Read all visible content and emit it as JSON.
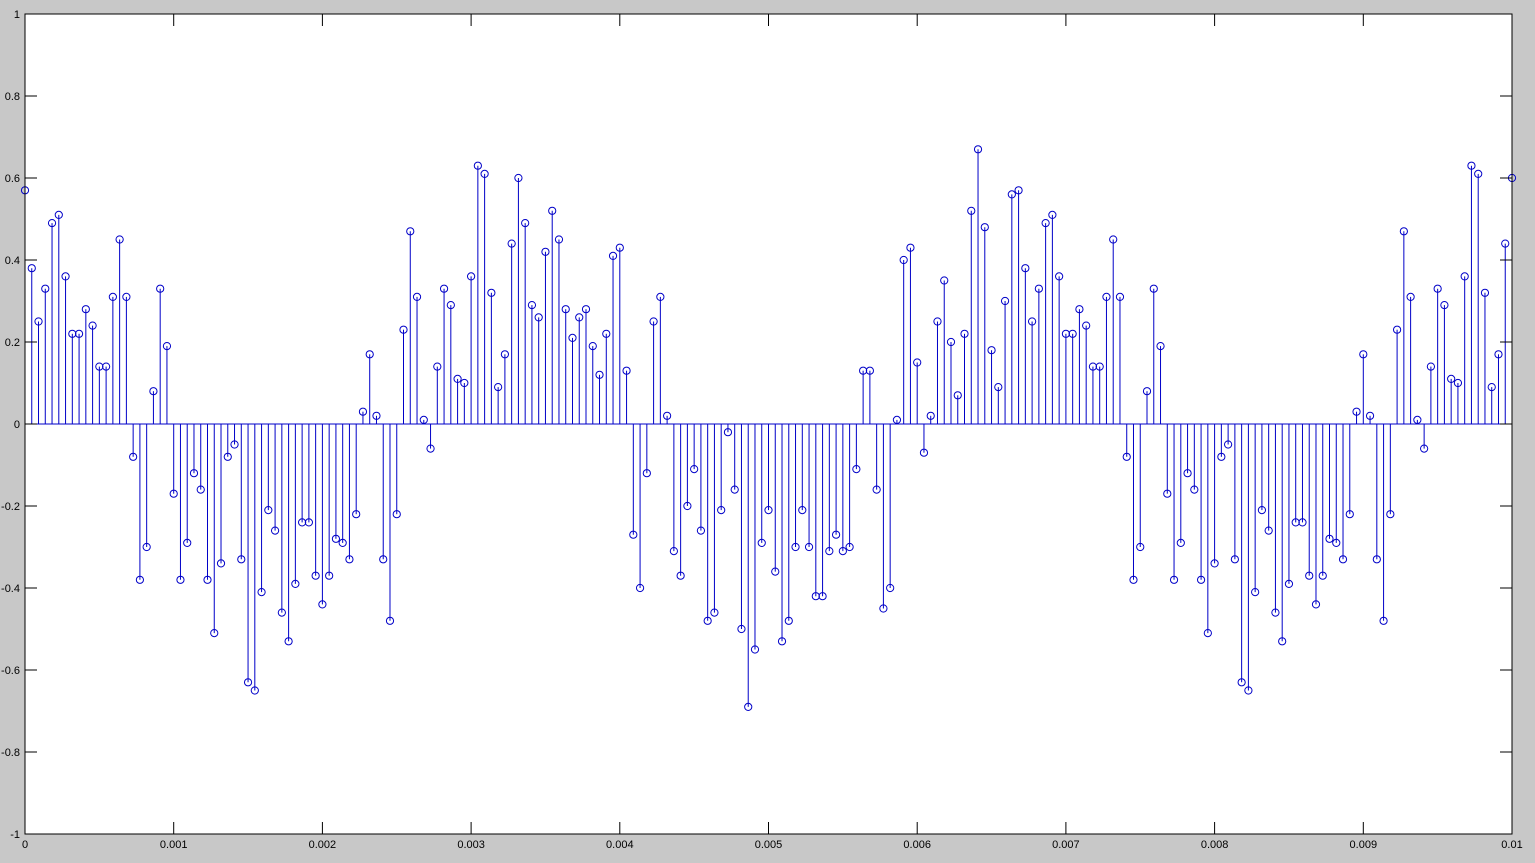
{
  "chart_data": {
    "type": "stem",
    "title": "",
    "xlabel": "",
    "ylabel": "",
    "xlim": [
      0,
      0.01
    ],
    "ylim": [
      -1,
      1
    ],
    "grid": false,
    "legend": "none",
    "x_ticks": [
      {
        "value": 0,
        "label": "0"
      },
      {
        "value": 0.001,
        "label": "0.001"
      },
      {
        "value": 0.002,
        "label": "0.002"
      },
      {
        "value": 0.003,
        "label": "0.003"
      },
      {
        "value": 0.004,
        "label": "0.004"
      },
      {
        "value": 0.005,
        "label": "0.005"
      },
      {
        "value": 0.006,
        "label": "0.006"
      },
      {
        "value": 0.007,
        "label": "0.007"
      },
      {
        "value": 0.008,
        "label": "0.008"
      },
      {
        "value": 0.009,
        "label": "0.009"
      },
      {
        "value": 0.01,
        "label": "0.01"
      }
    ],
    "y_ticks": [
      {
        "value": -1,
        "label": "-1"
      },
      {
        "value": -0.8,
        "label": "-0.8"
      },
      {
        "value": -0.6,
        "label": "-0.6"
      },
      {
        "value": -0.4,
        "label": "-0.4"
      },
      {
        "value": -0.2,
        "label": "-0.2"
      },
      {
        "value": 0,
        "label": "0"
      },
      {
        "value": 0.2,
        "label": "0.2"
      },
      {
        "value": 0.4,
        "label": "0.4"
      },
      {
        "value": 0.6,
        "label": "0.6"
      },
      {
        "value": 0.8,
        "label": "0.8"
      },
      {
        "value": 1,
        "label": "1"
      }
    ],
    "x_start": 0,
    "x_step": 4.54545e-05,
    "colors": {
      "stem": "#0000c8",
      "axes": "#000000",
      "plot_background": "#ffffff",
      "figure_background": "#c8c8c8"
    },
    "series": [
      {
        "values": [
          0.57,
          0.38,
          0.25,
          0.33,
          0.49,
          0.51,
          0.36,
          0.22,
          0.22,
          0.28,
          0.24,
          0.14,
          0.14,
          0.31,
          0.45,
          0.31,
          -0.08,
          -0.38,
          -0.3,
          0.08,
          0.33,
          0.19,
          -0.17,
          -0.38,
          -0.29,
          -0.12,
          -0.16,
          -0.38,
          -0.51,
          -0.34,
          -0.08,
          -0.05,
          -0.33,
          -0.63,
          -0.65,
          -0.41,
          -0.21,
          -0.26,
          -0.46,
          -0.53,
          -0.39,
          -0.24,
          -0.24,
          -0.37,
          -0.44,
          -0.37,
          -0.28,
          -0.29,
          -0.33,
          -0.22,
          0.03,
          0.17,
          0.02,
          -0.33,
          -0.48,
          -0.22,
          0.23,
          0.47,
          0.31,
          0.01,
          -0.06,
          0.14,
          0.33,
          0.29,
          0.11,
          0.1,
          0.36,
          0.63,
          0.61,
          0.32,
          0.09,
          0.17,
          0.44,
          0.6,
          0.49,
          0.29,
          0.26,
          0.42,
          0.52,
          0.45,
          0.28,
          0.21,
          0.26,
          0.28,
          0.19,
          0.12,
          0.22,
          0.41,
          0.43,
          0.13,
          -0.27,
          -0.4,
          -0.12,
          0.25,
          0.31,
          0.02,
          -0.31,
          -0.37,
          -0.2,
          -0.11,
          -0.26,
          -0.48,
          -0.46,
          -0.21,
          -0.02,
          -0.16,
          -0.5,
          -0.69,
          -0.55,
          -0.29,
          -0.21,
          -0.36,
          -0.53,
          -0.48,
          -0.3,
          -0.21,
          -0.3,
          -0.42,
          -0.42,
          -0.31,
          -0.27,
          -0.31,
          -0.3,
          -0.11,
          0.13,
          0.13,
          -0.16,
          -0.45,
          -0.4,
          0.01,
          0.4,
          0.43,
          0.15,
          -0.07,
          0.02,
          0.25,
          0.35,
          0.2,
          0.07,
          0.22,
          0.52,
          0.67,
          0.48,
          0.18,
          0.09,
          0.3,
          0.56,
          0.57,
          0.38,
          0.25,
          0.33,
          0.49,
          0.51,
          0.36,
          0.22,
          0.22,
          0.28,
          0.24,
          0.14,
          0.14,
          0.31,
          0.45,
          0.31,
          -0.08,
          -0.38,
          -0.3,
          0.08,
          0.33,
          0.19,
          -0.17,
          -0.38,
          -0.29,
          -0.12,
          -0.16,
          -0.38,
          -0.51,
          -0.34,
          -0.08,
          -0.05,
          -0.33,
          -0.63,
          -0.65,
          -0.41,
          -0.21,
          -0.26,
          -0.46,
          -0.53,
          -0.39,
          -0.24,
          -0.24,
          -0.37,
          -0.44,
          -0.37,
          -0.28,
          -0.29,
          -0.33,
          -0.22,
          0.03,
          0.17,
          0.02,
          -0.33,
          -0.48,
          -0.22,
          0.23,
          0.47,
          0.31,
          0.01,
          -0.06,
          0.14,
          0.33,
          0.29,
          0.11,
          0.1,
          0.36,
          0.63,
          0.61,
          0.32,
          0.09,
          0.17,
          0.44,
          0.6
        ]
      }
    ]
  }
}
